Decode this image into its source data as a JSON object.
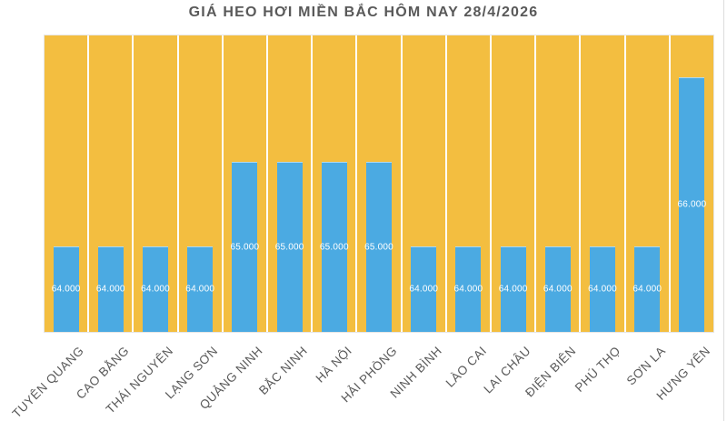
{
  "chart_data": {
    "type": "bar",
    "title": "GIÁ HEO HƠI MIỀN BẮC HÔM NAY 28/4/2026",
    "categories": [
      "TUYÊN QUANG",
      "CAO BẰNG",
      "THÁI NGUYÊN",
      "LẠNG SƠN",
      "QUẢNG NINH",
      "BẮC NINH",
      "HÀ NỘI",
      "HẢI PHÒNG",
      "NINH BÌNH",
      "LÀO CAI",
      "LAI CHÂU",
      "ĐIỆN BIÊN",
      "PHÚ THỌ",
      "SƠN LA",
      "HƯNG YÊN"
    ],
    "values": [
      64000,
      64000,
      64000,
      64000,
      65000,
      65000,
      65000,
      65000,
      64000,
      64000,
      64000,
      64000,
      64000,
      64000,
      66000
    ],
    "value_labels": [
      "64.000",
      "64.000",
      "64.000",
      "64.000",
      "65.000",
      "65.000",
      "65.000",
      "65.000",
      "64.000",
      "64.000",
      "64.000",
      "64.000",
      "64.000",
      "64.000",
      "66.000"
    ],
    "xlabel": "",
    "ylabel": "",
    "ylim": [
      63000,
      66500
    ],
    "y_axis_visible": false,
    "legend": "none",
    "grid": "white vertical separators between category bands",
    "colors": {
      "page_background": "#ffffff",
      "plot_background": "#f3be40",
      "bar": "#4baae2",
      "value_label": "#ffffff",
      "axis_label": "#595959",
      "title": "#595959",
      "band_separator": "#f1ecdd",
      "plot_border": "#e6e6e6"
    }
  }
}
